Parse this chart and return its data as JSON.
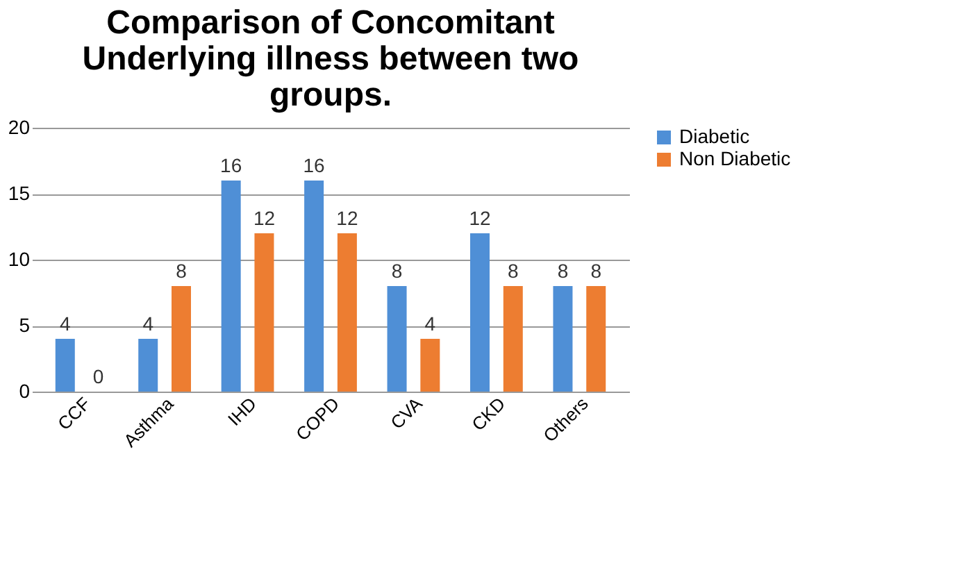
{
  "chart_data": {
    "type": "bar",
    "title": [
      "Comparison of Concomitant",
      "Underlying illness between two",
      "groups."
    ],
    "categories": [
      "CCF",
      "Asthma",
      "IHD",
      "COPD",
      "CVA",
      "CKD",
      "Others"
    ],
    "series": [
      {
        "name": "Diabetic",
        "color": "#4f8fd6",
        "values": [
          4,
          4,
          16,
          16,
          8,
          12,
          8
        ]
      },
      {
        "name": "Non Diabetic",
        "color": "#ed7d31",
        "values": [
          0,
          8,
          12,
          12,
          4,
          8,
          8
        ]
      }
    ],
    "ylim": [
      0,
      20
    ],
    "yticks": [
      0,
      5,
      10,
      15,
      20
    ],
    "grid": "y",
    "legend": "right",
    "data_labels": true
  }
}
